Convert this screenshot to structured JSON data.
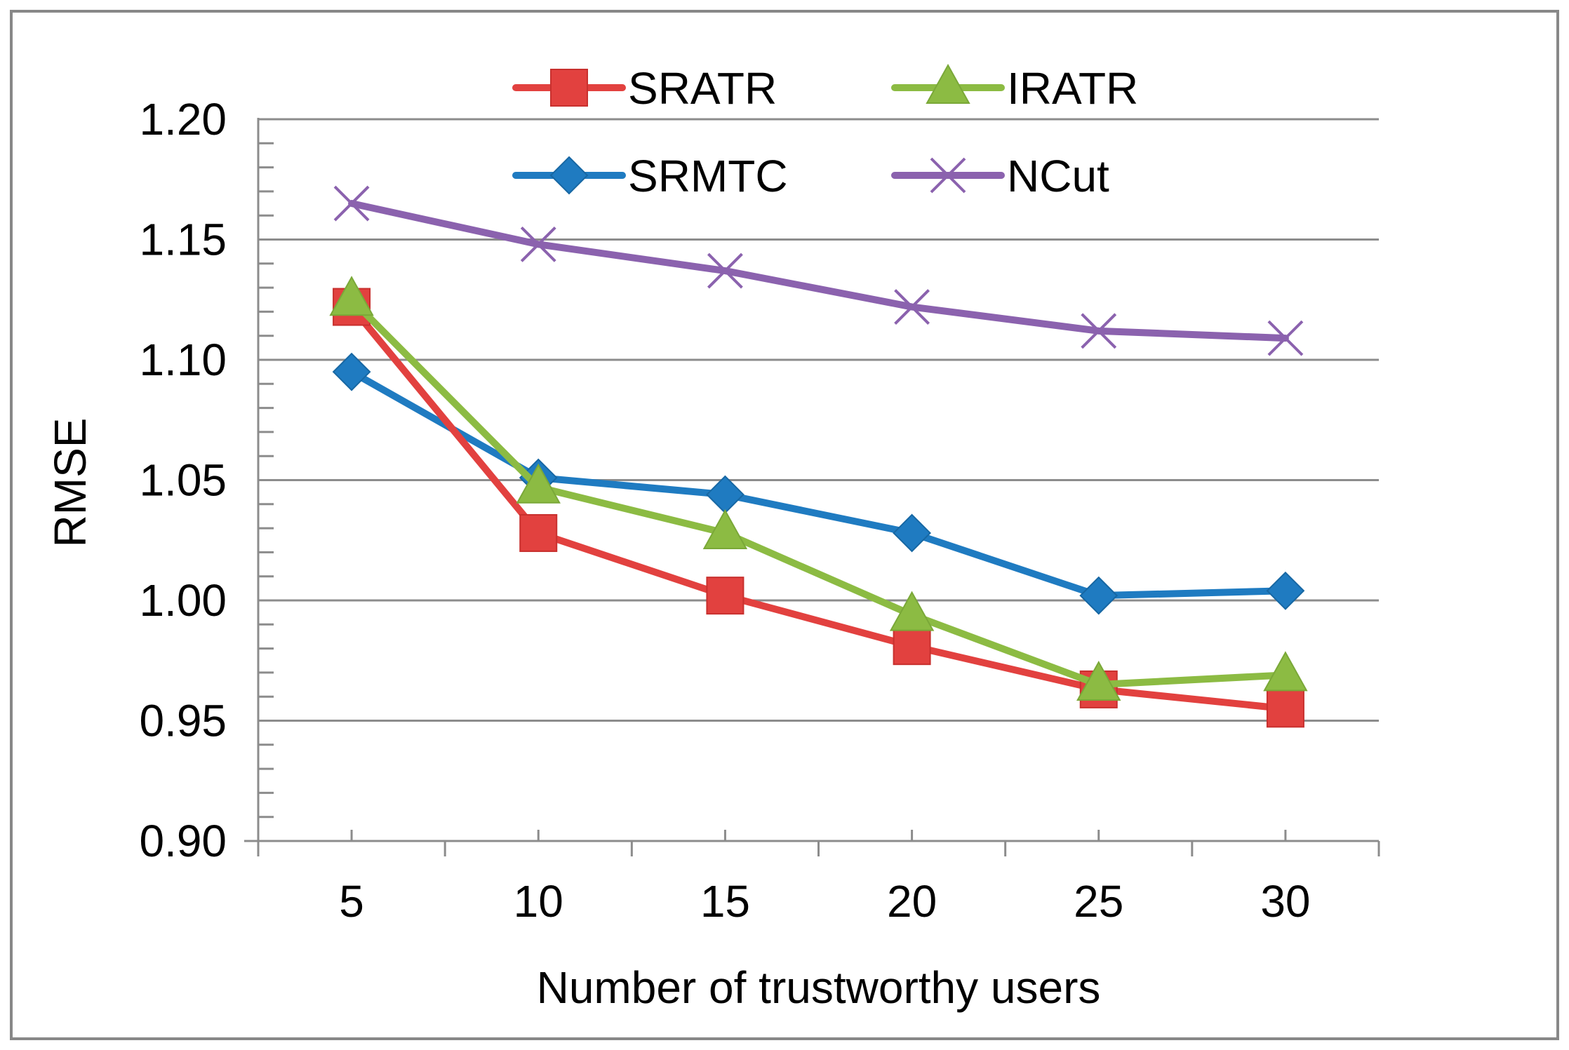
{
  "chart_data": {
    "type": "line",
    "title": "",
    "xlabel": "Number of trustworthy users",
    "ylabel": "RMSE",
    "categories": [
      "5",
      "10",
      "15",
      "20",
      "25",
      "30"
    ],
    "y_ticks": [
      "0.90",
      "0.95",
      "1.00",
      "1.05",
      "1.10",
      "1.15",
      "1.20"
    ],
    "ylim": [
      0.9,
      1.2
    ],
    "grid": true,
    "legend_position": "top",
    "series": [
      {
        "name": "SRATR",
        "color": "#E2413F",
        "marker": "square",
        "values": [
          1.122,
          1.028,
          1.002,
          0.981,
          0.963,
          0.955
        ]
      },
      {
        "name": "IRATR",
        "color": "#8CBB43",
        "marker": "triangle",
        "values": [
          1.125,
          1.047,
          1.028,
          0.994,
          0.965,
          0.969
        ]
      },
      {
        "name": "SRMTC",
        "color": "#1F7BC1",
        "marker": "diamond",
        "values": [
          1.095,
          1.051,
          1.044,
          1.028,
          1.002,
          1.004
        ]
      },
      {
        "name": "NCut",
        "color": "#8B62AE",
        "marker": "x",
        "values": [
          1.165,
          1.148,
          1.137,
          1.122,
          1.112,
          1.109
        ]
      }
    ]
  }
}
